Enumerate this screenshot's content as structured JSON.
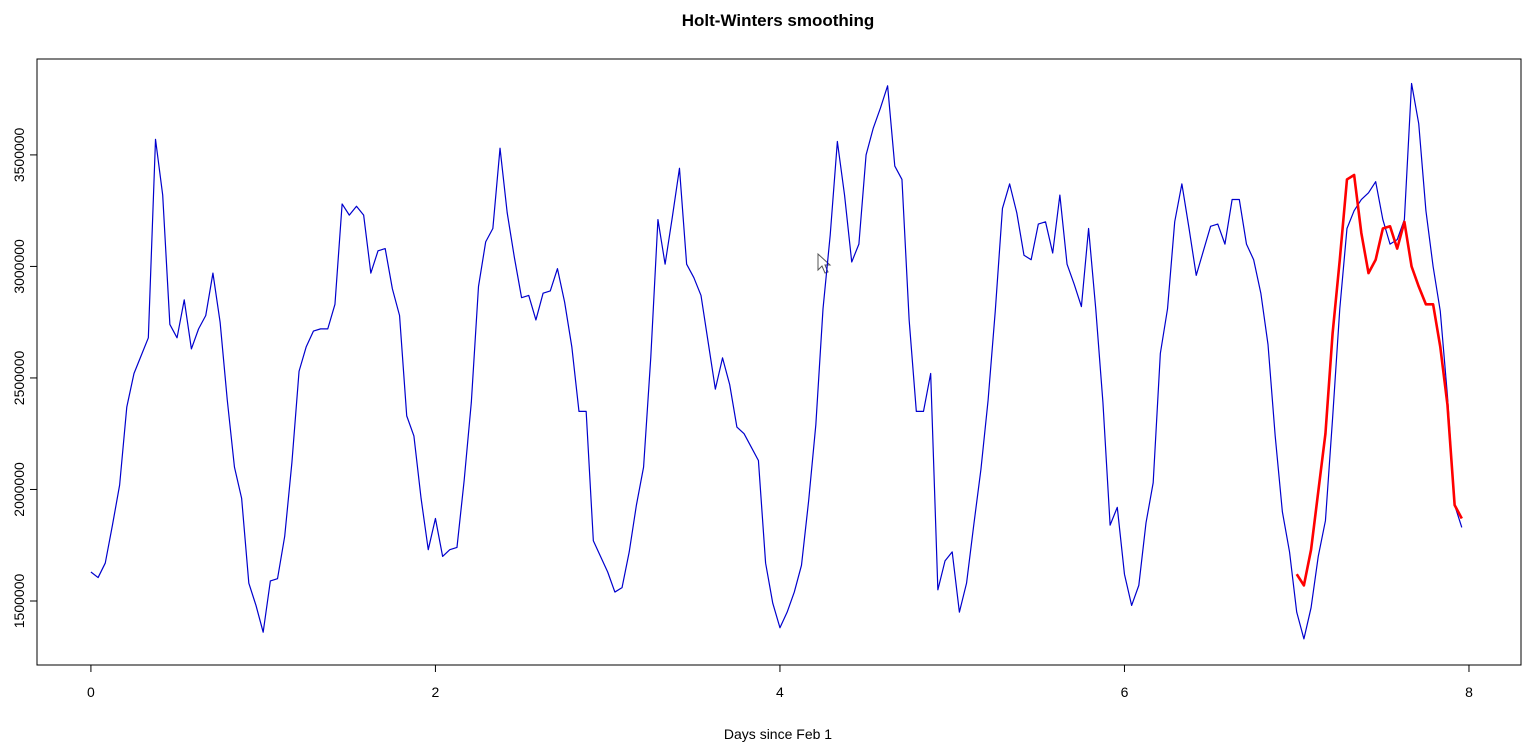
{
  "chart_data": {
    "type": "line",
    "title": "Holt-Winters smoothing",
    "xlabel": "Days since Feb 1",
    "xlim": [
      -0.313,
      8.302
    ],
    "ylim": [
      1213000,
      3930000
    ],
    "xticks": [
      0,
      2,
      4,
      6,
      8
    ],
    "yticks": [
      1500000,
      2000000,
      2500000,
      3000000,
      3500000
    ],
    "series": [
      {
        "color": "#0000cd",
        "x": [
          0,
          0.0417,
          0.0833,
          0.125,
          0.1667,
          0.2083,
          0.25,
          0.2917,
          0.3333,
          0.375,
          0.4167,
          0.4583,
          0.5,
          0.5417,
          0.5833,
          0.625,
          0.6667,
          0.7083,
          0.75,
          0.7917,
          0.8333,
          0.875,
          0.9167,
          0.9583,
          1,
          1.0417,
          1.0833,
          1.125,
          1.1667,
          1.2083,
          1.25,
          1.2917,
          1.3333,
          1.375,
          1.4167,
          1.4583,
          1.5,
          1.5417,
          1.5833,
          1.625,
          1.6667,
          1.7083,
          1.75,
          1.7917,
          1.8333,
          1.875,
          1.9167,
          1.9583,
          2,
          2.0417,
          2.0833,
          2.125,
          2.1667,
          2.2083,
          2.25,
          2.2917,
          2.3333,
          2.375,
          2.4167,
          2.4583,
          2.5,
          2.5417,
          2.5833,
          2.625,
          2.6667,
          2.7083,
          2.75,
          2.7917,
          2.8333,
          2.875,
          2.9167,
          2.9583,
          3,
          3.0417,
          3.0833,
          3.125,
          3.1667,
          3.2083,
          3.25,
          3.2917,
          3.3333,
          3.375,
          3.4167,
          3.4583,
          3.5,
          3.5417,
          3.5833,
          3.625,
          3.6667,
          3.7083,
          3.75,
          3.7917,
          3.8333,
          3.875,
          3.9167,
          3.9583,
          4,
          4.0417,
          4.0833,
          4.125,
          4.1667,
          4.2083,
          4.25,
          4.2917,
          4.3333,
          4.375,
          4.4167,
          4.4583,
          4.5,
          4.5417,
          4.5833,
          4.625,
          4.6667,
          4.7083,
          4.75,
          4.7917,
          4.8333,
          4.875,
          4.9167,
          4.9583,
          5,
          5.0417,
          5.0833,
          5.125,
          5.1667,
          5.2083,
          5.25,
          5.2917,
          5.3333,
          5.375,
          5.4167,
          5.4583,
          5.5,
          5.5417,
          5.5833,
          5.625,
          5.6667,
          5.7083,
          5.75,
          5.7917,
          5.8333,
          5.875,
          5.9167,
          5.9583,
          6,
          6.0417,
          6.0833,
          6.125,
          6.1667,
          6.2083,
          6.25,
          6.2917,
          6.3333,
          6.375,
          6.4167,
          6.4583,
          6.5,
          6.5417,
          6.5833,
          6.625,
          6.6667,
          6.7083,
          6.75,
          6.7917,
          6.8333,
          6.875,
          6.9167,
          6.9583,
          7,
          7.0417,
          7.0833,
          7.125,
          7.1667,
          7.2083,
          7.25,
          7.2917,
          7.3333,
          7.375,
          7.4167,
          7.4583,
          7.5,
          7.5417,
          7.5833,
          7.625,
          7.6667,
          7.7083,
          7.75,
          7.7917,
          7.8333,
          7.875,
          7.9167,
          7.9583
        ],
        "values": [
          1630000,
          1605000,
          1670000,
          1840000,
          2020000,
          2370000,
          2520000,
          2600000,
          2680000,
          3570000,
          3320000,
          2740000,
          2680000,
          2850000,
          2630000,
          2720000,
          2780000,
          2970000,
          2750000,
          2400000,
          2100000,
          1960000,
          1580000,
          1480000,
          1360000,
          1590000,
          1600000,
          1790000,
          2120000,
          2530000,
          2640000,
          2710000,
          2720000,
          2720000,
          2830000,
          3280000,
          3230000,
          3270000,
          3230000,
          2970000,
          3070000,
          3080000,
          2900000,
          2780000,
          2330000,
          2240000,
          1960000,
          1730000,
          1870000,
          1700000,
          1730000,
          1740000,
          2040000,
          2390000,
          2910000,
          3110000,
          3170000,
          3530000,
          3240000,
          3040000,
          2860000,
          2870000,
          2760000,
          2880000,
          2890000,
          2990000,
          2840000,
          2640000,
          2350000,
          2350000,
          1770000,
          1700000,
          1630000,
          1540000,
          1560000,
          1720000,
          1930000,
          2100000,
          2590000,
          3210000,
          3010000,
          3220000,
          3440000,
          3010000,
          2950000,
          2870000,
          2660000,
          2450000,
          2590000,
          2470000,
          2280000,
          2250000,
          2190000,
          2130000,
          1670000,
          1490000,
          1380000,
          1450000,
          1540000,
          1660000,
          1950000,
          2290000,
          2810000,
          3140000,
          3560000,
          3320000,
          3020000,
          3100000,
          3500000,
          3620000,
          3710000,
          3810000,
          3450000,
          3390000,
          2760000,
          2350000,
          2350000,
          2520000,
          1550000,
          1680000,
          1720000,
          1450000,
          1580000,
          1840000,
          2090000,
          2400000,
          2800000,
          3260000,
          3370000,
          3240000,
          3050000,
          3030000,
          3190000,
          3200000,
          3060000,
          3320000,
          3010000,
          2920000,
          2820000,
          3170000,
          2810000,
          2390000,
          1840000,
          1920000,
          1620000,
          1480000,
          1570000,
          1850000,
          2030000,
          2610000,
          2810000,
          3200000,
          3370000,
          3170000,
          2960000,
          3070000,
          3180000,
          3190000,
          3100000,
          3300000,
          3300000,
          3100000,
          3030000,
          2880000,
          2650000,
          2240000,
          1900000,
          1720000,
          1450000,
          1330000,
          1470000,
          1700000,
          1860000,
          2320000,
          2810000,
          3170000,
          3250000,
          3300000,
          3330000,
          3380000,
          3210000,
          3100000,
          3120000,
          3210000,
          3820000,
          3640000,
          3250000,
          3000000,
          2800000,
          2420000,
          1930000,
          1830000
        ]
      },
      {
        "color": "#ff0000",
        "x": [
          7,
          7.0417,
          7.0833,
          7.125,
          7.1667,
          7.2083,
          7.25,
          7.2917,
          7.3333,
          7.375,
          7.4167,
          7.4583,
          7.5,
          7.5417,
          7.5833,
          7.625,
          7.6667,
          7.7083,
          7.75,
          7.7917,
          7.8333,
          7.875,
          7.9167,
          7.9583
        ],
        "values": [
          1620000,
          1570000,
          1730000,
          1990000,
          2250000,
          2700000,
          3030000,
          3390000,
          3410000,
          3150000,
          2970000,
          3030000,
          3170000,
          3180000,
          3080000,
          3200000,
          3000000,
          2910000,
          2830000,
          2830000,
          2640000,
          2380000,
          1930000,
          1870000
        ]
      }
    ]
  }
}
